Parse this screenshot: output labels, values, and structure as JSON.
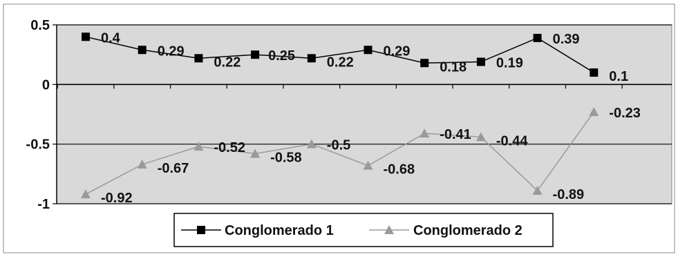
{
  "chart_data": {
    "type": "line",
    "title": "",
    "xlabel": "",
    "ylabel": "",
    "ylim": [
      -1,
      0.5
    ],
    "yticks": [
      0.5,
      0,
      -0.5,
      -1
    ],
    "ytick_labels": [
      "0.5",
      "0",
      "-0.5",
      "-1"
    ],
    "grid": "horizontal gridlines at 0.5, 0, -0.5, -1",
    "legend_placement": "bottom-center",
    "background_color": "#d9d9d9",
    "series": [
      {
        "name": "Conglomerado 1",
        "color": "#000000",
        "marker": "square",
        "values": [
          0.4,
          0.29,
          0.22,
          0.25,
          0.22,
          0.29,
          0.18,
          0.19,
          0.39,
          0.1
        ],
        "labels": [
          "0.4",
          "0.29",
          "0.22",
          "0.25",
          "0.22",
          "0.29",
          "0.18",
          "0.19",
          "0.39",
          "0.1"
        ]
      },
      {
        "name": "Conglomerado 2",
        "color": "#9a9a9a",
        "marker": "triangle",
        "values": [
          -0.92,
          -0.67,
          -0.52,
          -0.58,
          -0.5,
          -0.68,
          -0.41,
          -0.44,
          -0.89,
          -0.23
        ],
        "labels": [
          "-0.92",
          "-0.67",
          "-0.52",
          "-0.58",
          "-0.5",
          "-0.68",
          "-0.41",
          "-0.44",
          "-0.89",
          "-0.23"
        ]
      }
    ]
  }
}
